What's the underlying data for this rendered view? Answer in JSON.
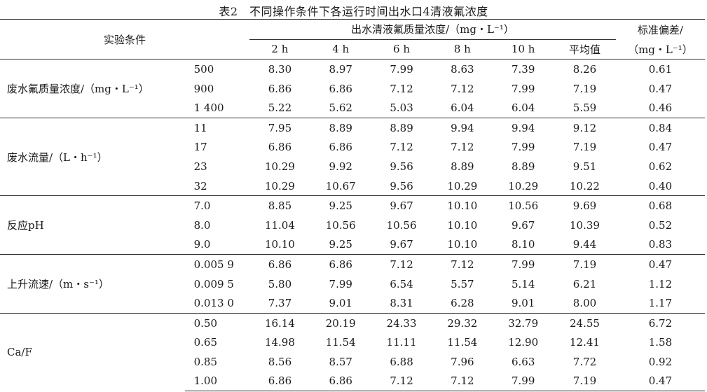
{
  "table": {
    "caption": "表2　不同操作条件下各运行时间出水口4清液氟浓度",
    "header": {
      "condition": "实验条件",
      "concentration_group": "出水清液氟质量浓度/（mg・L⁻¹）",
      "times": [
        "2 h",
        "4 h",
        "6 h",
        "8 h",
        "10 h",
        "平均值"
      ],
      "sd_line1": "标准偏差/",
      "sd_line2": "（mg・L⁻¹）"
    },
    "groups": [
      {
        "label": "废水氟质量浓度/（mg・L⁻¹）",
        "rows": [
          {
            "level": "500",
            "values": [
              "8.30",
              "8.97",
              "7.99",
              "8.63",
              "7.39",
              "8.26"
            ],
            "sd": "0.61"
          },
          {
            "level": "900",
            "values": [
              "6.86",
              "6.86",
              "7.12",
              "7.12",
              "7.99",
              "7.19"
            ],
            "sd": "0.47"
          },
          {
            "level": "1 400",
            "values": [
              "5.22",
              "5.62",
              "5.03",
              "6.04",
              "6.04",
              "5.59"
            ],
            "sd": "0.46"
          }
        ]
      },
      {
        "label": "废水流量/（L・h⁻¹）",
        "rows": [
          {
            "level": "11",
            "values": [
              "7.95",
              "8.89",
              "8.89",
              "9.94",
              "9.94",
              "9.12"
            ],
            "sd": "0.84"
          },
          {
            "level": "17",
            "values": [
              "6.86",
              "6.86",
              "7.12",
              "7.12",
              "7.99",
              "7.19"
            ],
            "sd": "0.47"
          },
          {
            "level": "23",
            "values": [
              "10.29",
              "9.92",
              "9.56",
              "8.89",
              "8.89",
              "9.51"
            ],
            "sd": "0.62"
          },
          {
            "level": "32",
            "values": [
              "10.29",
              "10.67",
              "9.56",
              "10.29",
              "10.29",
              "10.22"
            ],
            "sd": "0.40"
          }
        ]
      },
      {
        "label": "反应pH",
        "rows": [
          {
            "level": "7.0",
            "values": [
              "8.85",
              "9.25",
              "9.67",
              "10.10",
              "10.56",
              "9.69"
            ],
            "sd": "0.68"
          },
          {
            "level": "8.0",
            "values": [
              "11.04",
              "10.56",
              "10.56",
              "10.10",
              "9.67",
              "10.39"
            ],
            "sd": "0.52"
          },
          {
            "level": "9.0",
            "values": [
              "10.10",
              "9.25",
              "9.67",
              "10.10",
              "8.10",
              "9.44"
            ],
            "sd": "0.83"
          }
        ]
      },
      {
        "label": "上升流速/（m・s⁻¹）",
        "rows": [
          {
            "level": "0.005 9",
            "values": [
              "6.86",
              "6.86",
              "7.12",
              "7.12",
              "7.99",
              "7.19"
            ],
            "sd": "0.47"
          },
          {
            "level": "0.009 5",
            "values": [
              "5.80",
              "7.99",
              "6.54",
              "5.57",
              "5.14",
              "6.21"
            ],
            "sd": "1.12"
          },
          {
            "level": "0.013 0",
            "values": [
              "7.37",
              "9.01",
              "8.31",
              "6.28",
              "9.01",
              "8.00"
            ],
            "sd": "1.17"
          }
        ]
      },
      {
        "label": "Ca/F",
        "rows": [
          {
            "level": "0.50",
            "values": [
              "16.14",
              "20.19",
              "24.33",
              "29.32",
              "32.79",
              "24.55"
            ],
            "sd": "6.72"
          },
          {
            "level": "0.65",
            "values": [
              "14.98",
              "11.54",
              "11.11",
              "11.54",
              "12.90",
              "12.41"
            ],
            "sd": "1.58"
          },
          {
            "level": "0.85",
            "values": [
              "8.56",
              "8.57",
              "6.88",
              "7.96",
              "6.63",
              "7.72"
            ],
            "sd": "0.92"
          },
          {
            "level": "1.00",
            "values": [
              "6.86",
              "6.86",
              "7.12",
              "7.12",
              "7.99",
              "7.19"
            ],
            "sd": "0.47"
          }
        ]
      }
    ]
  }
}
